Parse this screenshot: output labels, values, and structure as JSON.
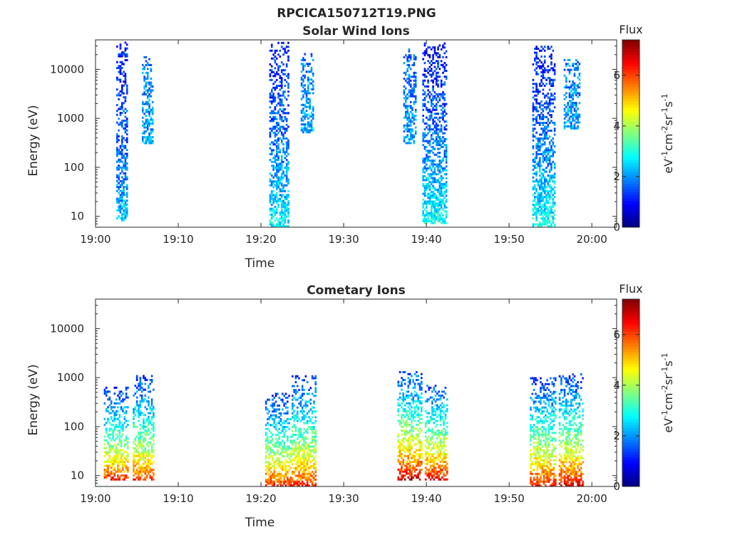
{
  "figure_title": "RPCICA150712T19.PNG",
  "chart_data": [
    {
      "type": "heatmap",
      "title": "Solar Wind Ions",
      "xlabel": "Time",
      "ylabel": "Energy (eV)",
      "y_scale": "log",
      "xlim": [
        "19:00",
        "20:03"
      ],
      "ylim": [
        6,
        40000
      ],
      "x_ticks": [
        "19:00",
        "19:10",
        "19:20",
        "19:30",
        "19:40",
        "19:50",
        "20:00"
      ],
      "y_ticks": [
        "10",
        "100",
        "1000",
        "10000"
      ],
      "colorbar": {
        "label": "Flux",
        "units": "eV-1cm-2sr-1s-1",
        "min": 0,
        "max": 7.4,
        "ticks": [
          "0",
          "2",
          "4",
          "6"
        ]
      },
      "bursts": [
        {
          "t": "19:02.5",
          "t_end": "19:03.8",
          "e_min": 8,
          "e_max": 35000,
          "flux_low": 2.4,
          "flux_high": 1.0
        },
        {
          "t": "19:05.6",
          "t_end": "19:07.0",
          "e_min": 300,
          "e_max": 17000,
          "flux_low": 2.2,
          "flux_high": 1.8
        },
        {
          "t": "19:21.0",
          "t_end": "19:23.3",
          "e_min": 6,
          "e_max": 35000,
          "flux_low": 2.8,
          "flux_high": 1.0
        },
        {
          "t": "19:24.8",
          "t_end": "19:26.2",
          "e_min": 500,
          "e_max": 20000,
          "flux_low": 2.2,
          "flux_high": 1.8
        },
        {
          "t": "19:37.2",
          "t_end": "19:38.8",
          "e_min": 300,
          "e_max": 25000,
          "flux_low": 2.2,
          "flux_high": 1.6
        },
        {
          "t": "19:39.5",
          "t_end": "19:42.4",
          "e_min": 7,
          "e_max": 35000,
          "flux_low": 3.0,
          "flux_high": 0.9
        },
        {
          "t": "19:52.8",
          "t_end": "19:55.6",
          "e_min": 6,
          "e_max": 28000,
          "flux_low": 3.0,
          "flux_high": 1.0
        },
        {
          "t": "19:56.6",
          "t_end": "19:58.5",
          "e_min": 600,
          "e_max": 15000,
          "flux_low": 2.2,
          "flux_high": 1.8
        }
      ]
    },
    {
      "type": "heatmap",
      "title": "Cometary Ions",
      "xlabel": "Time",
      "ylabel": "Energy (eV)",
      "y_scale": "log",
      "xlim": [
        "19:00",
        "20:03"
      ],
      "ylim": [
        6,
        40000
      ],
      "x_ticks": [
        "19:00",
        "19:10",
        "19:20",
        "19:30",
        "19:40",
        "19:50",
        "20:00"
      ],
      "y_ticks": [
        "10",
        "100",
        "1000",
        "10000"
      ],
      "colorbar": {
        "label": "Flux",
        "units": "eV-1cm-2sr-1s-1",
        "min": 0,
        "max": 7.4,
        "ticks": [
          "0",
          "2",
          "4",
          "6"
        ]
      },
      "bursts": [
        {
          "t": "19:01.0",
          "t_end": "19:04.0",
          "e_min": 8,
          "e_max": 600,
          "flux_low": 6.4,
          "flux_high": 1.2
        },
        {
          "t": "19:04.5",
          "t_end": "19:07.0",
          "e_min": 8,
          "e_max": 1100,
          "flux_low": 6.2,
          "flux_high": 1.2
        },
        {
          "t": "19:20.5",
          "t_end": "19:23.5",
          "e_min": 6,
          "e_max": 450,
          "flux_low": 6.4,
          "flux_high": 1.2
        },
        {
          "t": "19:23.7",
          "t_end": "19:26.5",
          "e_min": 6,
          "e_max": 1100,
          "flux_low": 6.4,
          "flux_high": 1.2
        },
        {
          "t": "19:36.5",
          "t_end": "19:39.5",
          "e_min": 8,
          "e_max": 1300,
          "flux_low": 7.0,
          "flux_high": 1.4
        },
        {
          "t": "19:39.8",
          "t_end": "19:42.6",
          "e_min": 8,
          "e_max": 700,
          "flux_low": 6.8,
          "flux_high": 1.4
        },
        {
          "t": "19:52.5",
          "t_end": "19:55.7",
          "e_min": 6,
          "e_max": 1000,
          "flux_low": 6.5,
          "flux_high": 1.2
        },
        {
          "t": "19:56.0",
          "t_end": "19:59.0",
          "e_min": 6,
          "e_max": 1200,
          "flux_low": 6.8,
          "flux_high": 1.2
        }
      ]
    }
  ]
}
